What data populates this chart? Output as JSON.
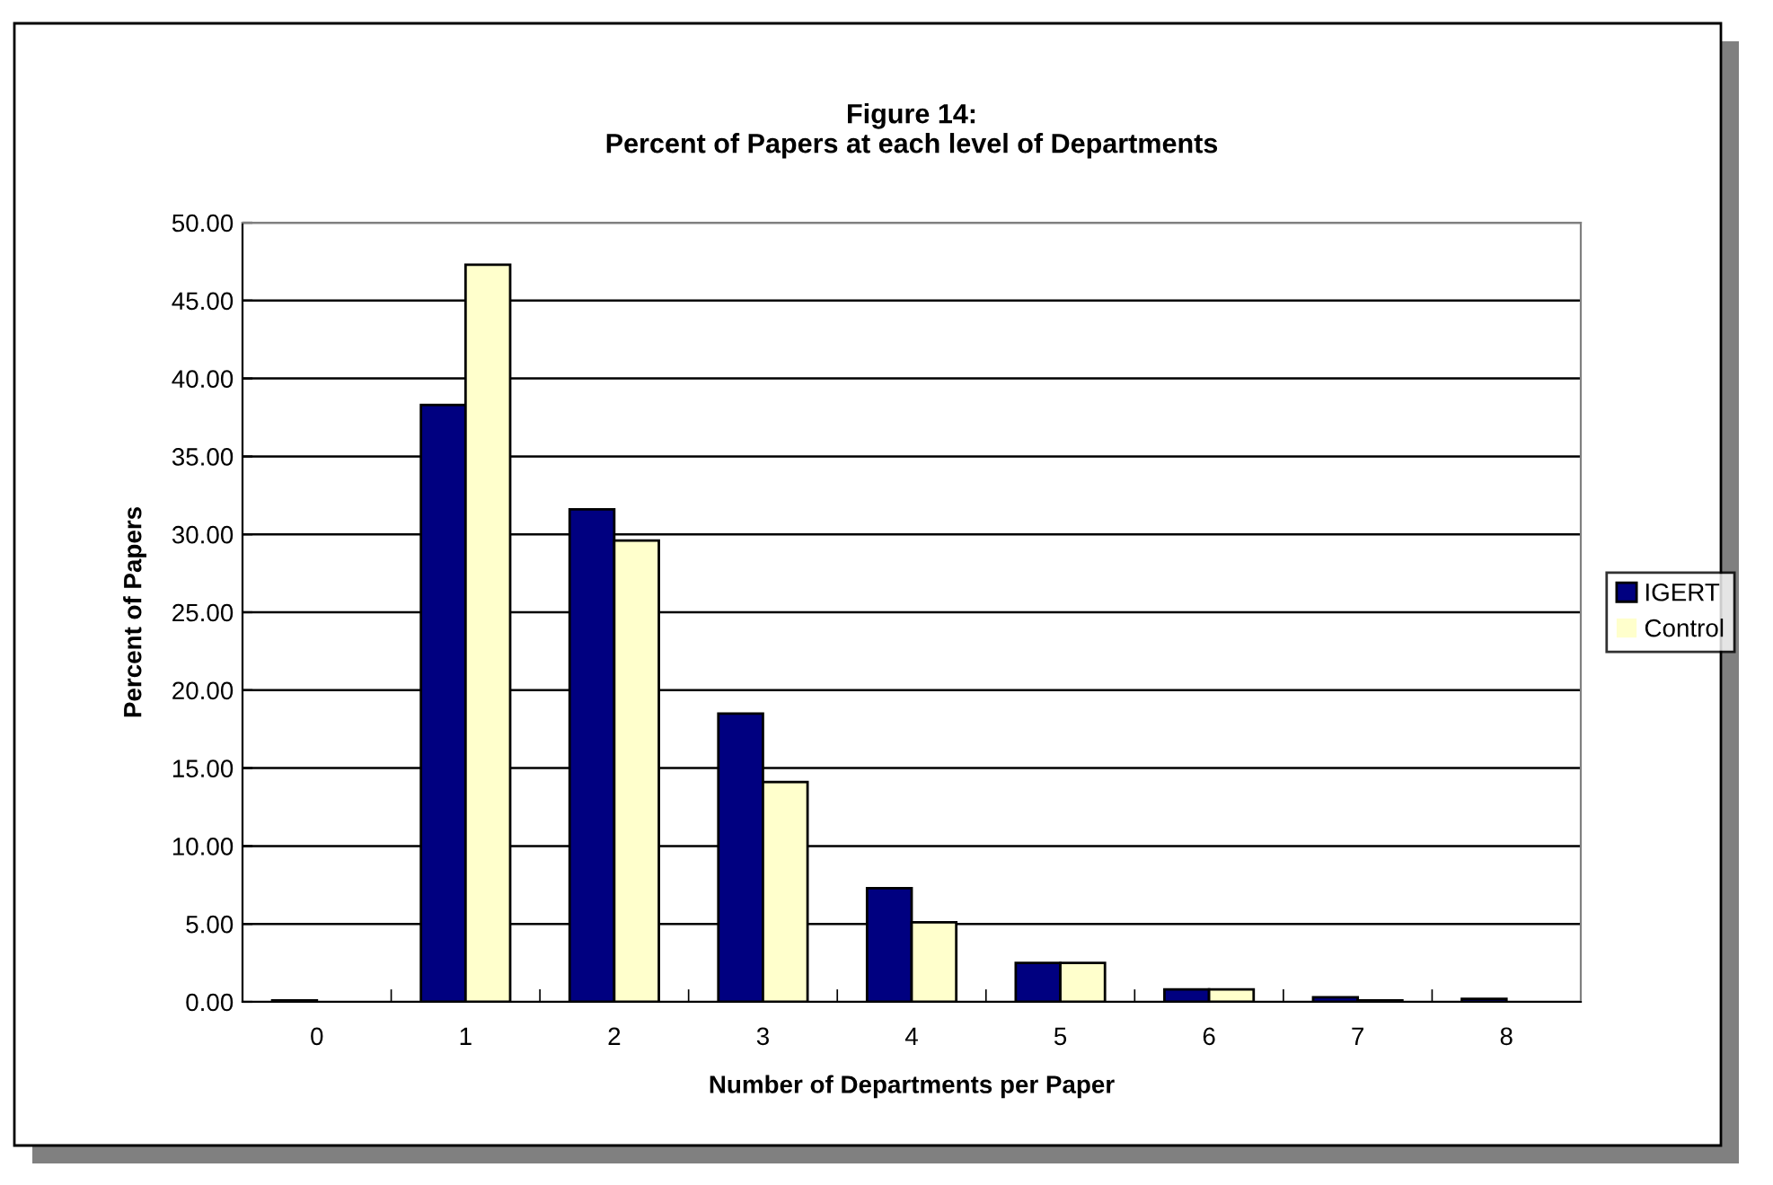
{
  "chart_data": {
    "type": "bar",
    "title": "Figure 14:\nPercent of Papers at each level of Departments",
    "xlabel": "Number of Departments per Paper",
    "ylabel": "Percent of Papers",
    "categories": [
      "0",
      "1",
      "2",
      "3",
      "4",
      "5",
      "6",
      "7",
      "8"
    ],
    "series": [
      {
        "name": "IGERT",
        "color": "#000080",
        "values": [
          0.1,
          38.3,
          31.6,
          18.5,
          7.3,
          2.5,
          0.8,
          0.3,
          0.2
        ]
      },
      {
        "name": "Control",
        "color": "#ffffcc",
        "values": [
          0,
          47.3,
          29.6,
          14.1,
          5.1,
          2.5,
          0.8,
          0.1,
          0
        ]
      }
    ],
    "ylim": [
      0,
      50
    ],
    "yticks": [
      {
        "value": 0,
        "label": "0.00"
      },
      {
        "value": 5,
        "label": "5.00"
      },
      {
        "value": 10,
        "label": "10.00"
      },
      {
        "value": 15,
        "label": "15.00"
      },
      {
        "value": 20,
        "label": "20.00"
      },
      {
        "value": 25,
        "label": "25.00"
      },
      {
        "value": 30,
        "label": "30.00"
      },
      {
        "value": 35,
        "label": "35.00"
      },
      {
        "value": 40,
        "label": "40.00"
      },
      {
        "value": 45,
        "label": "45.00"
      },
      {
        "value": 50,
        "label": "50.00"
      }
    ],
    "grid": "y",
    "legend": "right"
  }
}
